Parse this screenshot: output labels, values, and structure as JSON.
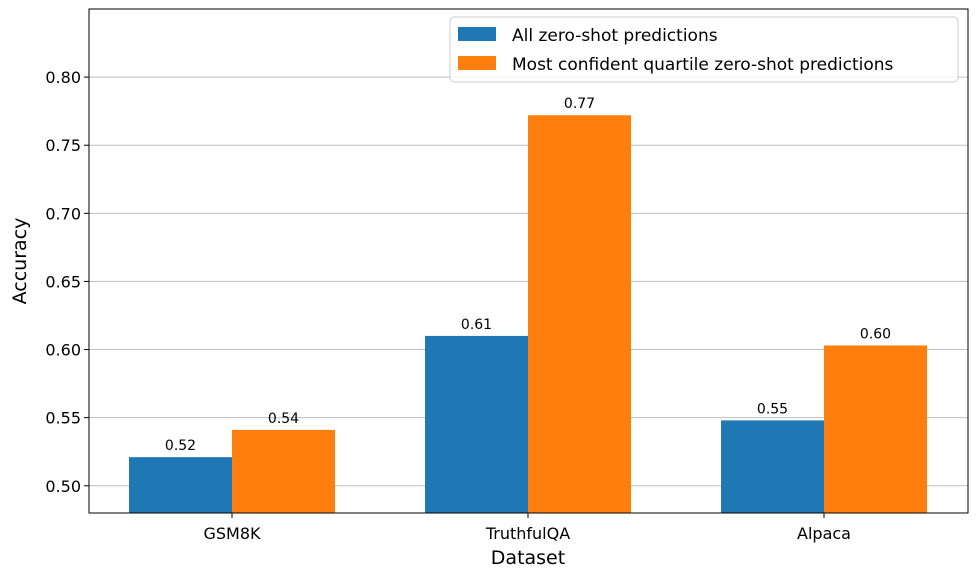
{
  "chart_data": {
    "type": "bar",
    "title": "",
    "xlabel": "Dataset",
    "ylabel": "Accuracy",
    "categories": [
      "GSM8K",
      "TruthfulQA",
      "Alpaca"
    ],
    "series": [
      {
        "name": "All zero-shot predictions",
        "color": "#1f77b4",
        "values": [
          0.521,
          0.61,
          0.548
        ],
        "labels": [
          "0.52",
          "0.61",
          "0.55"
        ]
      },
      {
        "name": "Most confident quartile zero-shot predictions",
        "color": "#ff7f0e",
        "values": [
          0.541,
          0.772,
          0.603
        ],
        "labels": [
          "0.54",
          "0.77",
          "0.60"
        ]
      }
    ],
    "ylim": [
      0.48,
      0.85
    ],
    "yticks": [
      "0.50",
      "0.55",
      "0.60",
      "0.65",
      "0.70",
      "0.75",
      "0.80"
    ],
    "grid": "horizontal",
    "legend_position": "top-right"
  }
}
